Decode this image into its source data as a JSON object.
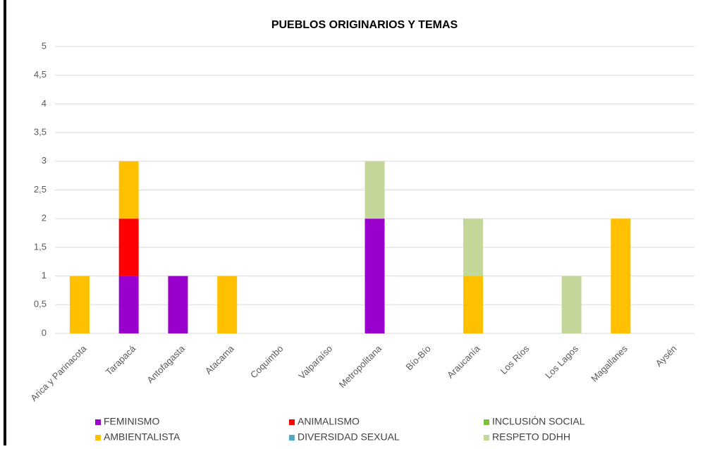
{
  "chart_data": {
    "type": "stacked_bar",
    "title": "PUEBLOS ORIGINARIOS Y TEMAS",
    "categories": [
      "Arica y Parinacota",
      "Tarapacá",
      "Antofagasta",
      "Atacama",
      "Coquimbo",
      "Valparaíso",
      "Metropolitana",
      "Bío-Bío",
      "Araucanía",
      "Los Ríos",
      "Los Lagos",
      "Magallanes",
      "Aysén"
    ],
    "series": [
      {
        "name": "FEMINISMO",
        "color": "#9900cc",
        "values": [
          0,
          1,
          1,
          0,
          0,
          0,
          2,
          0,
          0,
          0,
          0,
          0,
          0
        ]
      },
      {
        "name": "ANIMALISMO",
        "color": "#ff0000",
        "values": [
          0,
          1,
          0,
          0,
          0,
          0,
          0,
          0,
          0,
          0,
          0,
          0,
          0
        ]
      },
      {
        "name": "INCLUSIÓN SOCIAL",
        "color": "#7cbf3f",
        "values": [
          0,
          0,
          0,
          0,
          0,
          0,
          0,
          0,
          0,
          0,
          0,
          0,
          0
        ]
      },
      {
        "name": "AMBIENTALISTA",
        "color": "#ffc000",
        "values": [
          1,
          1,
          0,
          1,
          0,
          0,
          0,
          0,
          1,
          0,
          0,
          2,
          0
        ]
      },
      {
        "name": "DIVERSIDAD SEXUAL",
        "color": "#4bacc6",
        "values": [
          0,
          0,
          0,
          0,
          0,
          0,
          0,
          0,
          0,
          0,
          0,
          0,
          0
        ]
      },
      {
        "name": "RESPETO DDHH",
        "color": "#c4d79b",
        "values": [
          0,
          0,
          0,
          0,
          0,
          0,
          1,
          0,
          1,
          0,
          1,
          0,
          0
        ]
      }
    ],
    "ylim": [
      0,
      5
    ],
    "yticks": [
      0,
      {
        "value": 0.5,
        "label": "0,5"
      },
      1,
      {
        "value": 1.5,
        "label": "1,5"
      },
      2,
      {
        "value": 2.5,
        "label": "2,5"
      },
      3,
      {
        "value": 3.5,
        "label": "3,5"
      },
      4,
      {
        "value": 4.5,
        "label": "4,5"
      },
      5
    ],
    "grid": true,
    "legend": "bottom"
  }
}
